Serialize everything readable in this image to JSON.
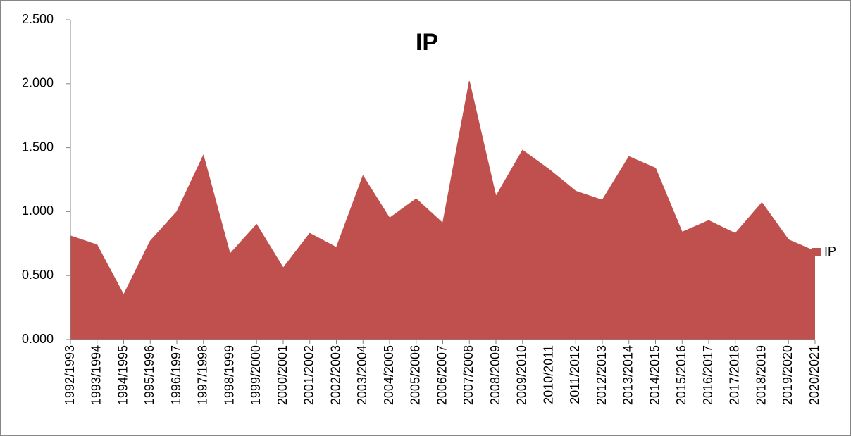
{
  "chart_data": {
    "type": "area",
    "title": "IP",
    "categories": [
      "1992/1993",
      "1993/1994",
      "1994/1995",
      "1995/1996",
      "1996/1997",
      "1997/1998",
      "1998/1999",
      "1999/2000",
      "2000/2001",
      "2001/2002",
      "2002/2003",
      "2003/2004",
      "2004/2005",
      "2005/2006",
      "2006/2007",
      "2007/2008",
      "2008/2009",
      "2009/2010",
      "2010/2011",
      "2011/2012",
      "2012/2013",
      "2013/2014",
      "2014/2015",
      "2015/2016",
      "2016/2017",
      "2017/2018",
      "2018/2019",
      "2019/2020",
      "2020/2021"
    ],
    "series": [
      {
        "name": "IP",
        "color": "#c0504d",
        "values": [
          0.81,
          0.74,
          0.35,
          0.77,
          1.0,
          1.44,
          0.67,
          0.9,
          0.56,
          0.83,
          0.72,
          1.28,
          0.95,
          1.1,
          0.91,
          2.02,
          1.12,
          1.48,
          1.33,
          1.16,
          1.09,
          1.43,
          1.34,
          0.84,
          0.93,
          0.83,
          1.07,
          0.78,
          0.69
        ]
      }
    ],
    "ylim": [
      0,
      2.5
    ],
    "yticks": [
      {
        "value": 0,
        "label": "0.000"
      },
      {
        "value": 0.5,
        "label": "0.500"
      },
      {
        "value": 1,
        "label": "1.000"
      },
      {
        "value": 1.5,
        "label": "1.500"
      },
      {
        "value": 2,
        "label": "2.000"
      },
      {
        "value": 2.5,
        "label": "2.500"
      }
    ],
    "grid": false,
    "legend": "right"
  }
}
